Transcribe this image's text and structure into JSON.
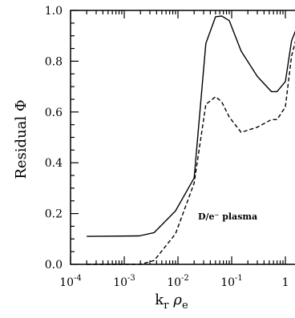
{
  "chart_data": {
    "type": "line",
    "xscale": "log",
    "xlim": [
      0.0001,
      3
    ],
    "ylim": [
      0,
      1
    ],
    "x_ticks": [
      {
        "value": 0.0001,
        "base": "10",
        "exp": "-4"
      },
      {
        "value": 0.001,
        "base": "10",
        "exp": "-3"
      },
      {
        "value": 0.01,
        "base": "10",
        "exp": "-2"
      },
      {
        "value": 0.1,
        "base": "10",
        "exp": "-1"
      },
      {
        "value": 1,
        "base": "1",
        "exp": ""
      }
    ],
    "y_ticks": [
      {
        "value": 0.0,
        "label": "0.0"
      },
      {
        "value": 0.2,
        "label": "0.2"
      },
      {
        "value": 0.4,
        "label": "0.4"
      },
      {
        "value": 0.6,
        "label": "0.6"
      },
      {
        "value": 0.8,
        "label": "0.8"
      },
      {
        "value": 1.0,
        "label": "1.0"
      }
    ],
    "xlabel": {
      "main": "k",
      "sub_r": "r",
      "greek": "ρ",
      "sub_e": "e"
    },
    "ylabel": "Residual Φ",
    "annotation": "D/e⁻ plasma",
    "series": [
      {
        "style": "solid",
        "x": [
          0.0002,
          0.0019,
          0.0036,
          0.009,
          0.02,
          0.033,
          0.05,
          0.065,
          0.09,
          0.15,
          0.3,
          0.55,
          0.7,
          1.0,
          1.3,
          2.0
        ],
        "y": [
          0.11,
          0.112,
          0.125,
          0.21,
          0.34,
          0.87,
          0.975,
          0.978,
          0.96,
          0.84,
          0.74,
          0.68,
          0.68,
          0.72,
          0.88,
          0.98
        ]
      },
      {
        "style": "dashed",
        "x": [
          0.0002,
          0.002,
          0.0036,
          0.009,
          0.02,
          0.033,
          0.05,
          0.065,
          0.09,
          0.15,
          0.3,
          0.55,
          0.7,
          1.0,
          1.3,
          2.0
        ],
        "y": [
          0.0,
          0.0,
          0.015,
          0.12,
          0.32,
          0.63,
          0.66,
          0.64,
          0.58,
          0.52,
          0.54,
          0.57,
          0.57,
          0.62,
          0.82,
          0.97
        ]
      }
    ]
  }
}
